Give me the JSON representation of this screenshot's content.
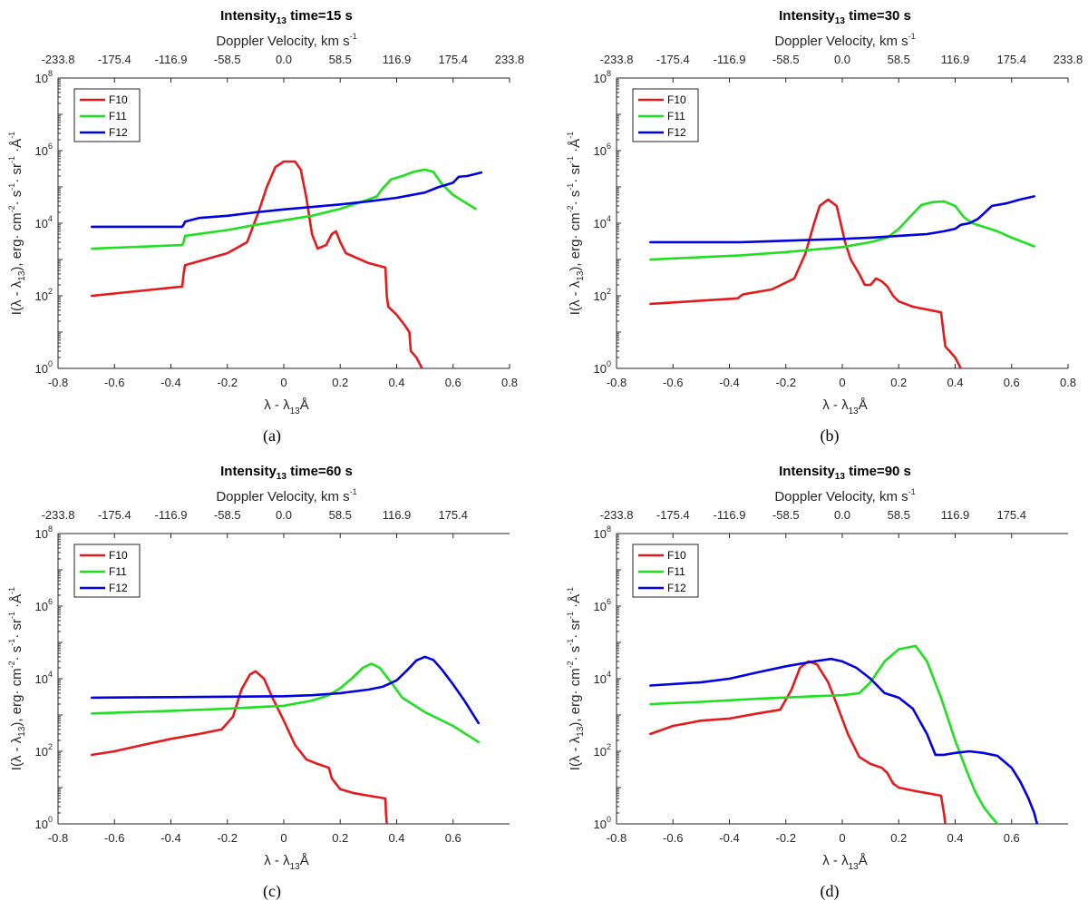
{
  "chart_data": [
    {
      "type": "line",
      "title": "Intensity",
      "title_sub": "13",
      "title_suffix": " time=15 s",
      "caption": "(a)",
      "xlabel_prefix": "λ - λ",
      "xlabel_sub": "13",
      "xlabel_suffix": "Å",
      "ylabel": "I(λ - λ13), erg· cm-2· s-1· sr-1 ·Å-1",
      "top_axis_label": "Doppler Velocity, km s",
      "top_axis_sup": "-1",
      "xlim": [
        -0.8,
        0.8
      ],
      "ylim": [
        1,
        100000000
      ],
      "yscale": "log",
      "xticks": [
        "-0.8",
        "-0.6",
        "-0.4",
        "-0.2",
        "0",
        "0.2",
        "0.4",
        "0.6",
        "0.8"
      ],
      "xtick_values": [
        -0.8,
        -0.6,
        -0.4,
        -0.2,
        0,
        0.2,
        0.4,
        0.6,
        0.8
      ],
      "top_ticks": [
        "-233.8",
        "-175.4",
        "-116.9",
        "-58.5",
        "0.0",
        "58.5",
        "116.9",
        "175.4",
        "233.8"
      ],
      "top_tick_values": [
        -0.8,
        -0.6,
        -0.4,
        -0.2,
        0,
        0.2,
        0.4,
        0.6,
        0.8
      ],
      "yticks_exp": [
        "0",
        "2",
        "4",
        "6",
        "8"
      ],
      "legend": {
        "position": "top-left"
      },
      "series": [
        {
          "name": "F10",
          "color": "#e41a1c",
          "x": [
            -0.68,
            -0.36,
            -0.355,
            -0.35,
            -0.2,
            -0.13,
            -0.09,
            -0.06,
            -0.03,
            0.0,
            0.04,
            0.06,
            0.08,
            0.1,
            0.12,
            0.15,
            0.17,
            0.185,
            0.2,
            0.22,
            0.3,
            0.36,
            0.365,
            0.37,
            0.4,
            0.43,
            0.445,
            0.45,
            0.47,
            0.49
          ],
          "y": [
            100,
            180,
            400,
            700,
            1500,
            3000,
            20000,
            100000,
            350000,
            500000,
            500000,
            300000,
            50000,
            5000,
            2000,
            2500,
            5000,
            6000,
            3000,
            1500,
            800,
            600,
            100,
            50,
            30,
            15,
            10,
            3,
            2,
            1
          ]
        },
        {
          "name": "F11",
          "color": "#1fe01f",
          "x": [
            -0.68,
            -0.36,
            -0.355,
            -0.35,
            -0.2,
            -0.1,
            0.0,
            0.1,
            0.2,
            0.3,
            0.33,
            0.35,
            0.38,
            0.42,
            0.46,
            0.5,
            0.53,
            0.56,
            0.6,
            0.68
          ],
          "y": [
            2000,
            2500,
            3000,
            4500,
            6500,
            9000,
            12000,
            16000,
            25000,
            45000,
            55000,
            90000,
            160000,
            200000,
            260000,
            300000,
            260000,
            120000,
            60000,
            25000
          ]
        },
        {
          "name": "F12",
          "color": "#0000e0",
          "x": [
            -0.68,
            -0.36,
            -0.355,
            -0.35,
            -0.3,
            -0.2,
            -0.1,
            0.0,
            0.1,
            0.2,
            0.3,
            0.4,
            0.5,
            0.55,
            0.57,
            0.6,
            0.62,
            0.65,
            0.7
          ],
          "y": [
            8000,
            8000,
            9000,
            11000,
            14000,
            16000,
            20000,
            24000,
            28000,
            33000,
            40000,
            50000,
            70000,
            100000,
            110000,
            130000,
            190000,
            200000,
            250000
          ]
        }
      ]
    },
    {
      "type": "line",
      "title": "Intensity",
      "title_sub": "13",
      "title_suffix": " time=30 s",
      "caption": "(b)",
      "xlabel_prefix": "λ - λ",
      "xlabel_sub": "13",
      "xlabel_suffix": "Å",
      "ylabel": "I(λ - λ13), erg· cm-2· s-1· sr-1 ·Å-1",
      "top_axis_label": "Doppler Velocity, km s",
      "top_axis_sup": "-1",
      "xlim": [
        -0.8,
        0.8
      ],
      "ylim": [
        1,
        100000000
      ],
      "yscale": "log",
      "xticks": [
        "-0.8",
        "-0.6",
        "-0.4",
        "-0.2",
        "0",
        "0.2",
        "0.4",
        "0.6",
        "0.8"
      ],
      "xtick_values": [
        -0.8,
        -0.6,
        -0.4,
        -0.2,
        0,
        0.2,
        0.4,
        0.6,
        0.8
      ],
      "top_ticks": [
        "-233.8",
        "-175.4",
        "-116.9",
        "-58.5",
        "0.0",
        "58.5",
        "116.9",
        "175.4",
        "233.8"
      ],
      "top_tick_values": [
        -0.8,
        -0.6,
        -0.4,
        -0.2,
        0,
        0.2,
        0.4,
        0.6,
        0.8
      ],
      "yticks_exp": [
        "0",
        "2",
        "4",
        "6",
        "8"
      ],
      "legend": {
        "position": "top-left"
      },
      "series": [
        {
          "name": "F10",
          "color": "#e41a1c",
          "x": [
            -0.68,
            -0.37,
            -0.36,
            -0.35,
            -0.25,
            -0.17,
            -0.13,
            -0.1,
            -0.08,
            -0.05,
            -0.02,
            0.01,
            0.03,
            0.06,
            0.08,
            0.1,
            0.12,
            0.14,
            0.16,
            0.18,
            0.2,
            0.25,
            0.35,
            0.36,
            0.365,
            0.38,
            0.4,
            0.42
          ],
          "y": [
            60,
            85,
            100,
            110,
            150,
            300,
            1500,
            10000,
            30000,
            45000,
            30000,
            3000,
            1000,
            400,
            200,
            200,
            300,
            250,
            180,
            100,
            70,
            50,
            35,
            8,
            4,
            3,
            2,
            1
          ]
        },
        {
          "name": "F11",
          "color": "#1fe01f",
          "x": [
            -0.68,
            -0.36,
            -0.2,
            0.0,
            0.1,
            0.16,
            0.2,
            0.24,
            0.28,
            0.32,
            0.36,
            0.4,
            0.43,
            0.46,
            0.5,
            0.55,
            0.6,
            0.68
          ],
          "y": [
            1000,
            1300,
            1600,
            2200,
            3000,
            4000,
            7000,
            15000,
            32000,
            38000,
            40000,
            30000,
            15000,
            10000,
            8000,
            6000,
            4000,
            2300
          ]
        },
        {
          "name": "F12",
          "color": "#0000e0",
          "x": [
            -0.68,
            -0.36,
            -0.2,
            0.0,
            0.1,
            0.2,
            0.3,
            0.36,
            0.4,
            0.42,
            0.45,
            0.48,
            0.5,
            0.53,
            0.58,
            0.63,
            0.68
          ],
          "y": [
            3000,
            3000,
            3300,
            3700,
            4000,
            4500,
            5000,
            6000,
            7000,
            9000,
            10000,
            13000,
            18000,
            30000,
            35000,
            45000,
            55000
          ]
        }
      ]
    },
    {
      "type": "line",
      "title": "Intensity",
      "title_sub": "13",
      "title_suffix": " time=60 s",
      "caption": "(c)",
      "xlabel_prefix": "λ - λ",
      "xlabel_sub": "13",
      "xlabel_suffix": "Å",
      "ylabel": "I(λ - λ13), erg· cm-2· s-1· sr-1 ·Å-1",
      "top_axis_label": "Doppler Velocity, km s",
      "top_axis_sup": "-1",
      "xlim": [
        -0.8,
        0.8
      ],
      "ylim": [
        1,
        100000000
      ],
      "yscale": "log",
      "xticks": [
        "-0.8",
        "-0.6",
        "-0.4",
        "-0.2",
        "0",
        "0.2",
        "0.4",
        "0.6"
      ],
      "xtick_values": [
        -0.8,
        -0.6,
        -0.4,
        -0.2,
        0,
        0.2,
        0.4,
        0.6
      ],
      "top_ticks": [
        "-233.8",
        "-175.4",
        "-116.9",
        "-58.5",
        "0.0",
        "58.5",
        "116.9",
        "175.4"
      ],
      "top_tick_values": [
        -0.8,
        -0.6,
        -0.4,
        -0.2,
        0,
        0.2,
        0.4,
        0.6
      ],
      "yticks_exp": [
        "0",
        "2",
        "4",
        "6",
        "8"
      ],
      "legend": {
        "position": "top-left"
      },
      "series": [
        {
          "name": "F10",
          "color": "#e41a1c",
          "x": [
            -0.68,
            -0.6,
            -0.5,
            -0.4,
            -0.3,
            -0.22,
            -0.18,
            -0.15,
            -0.12,
            -0.1,
            -0.07,
            -0.04,
            0.0,
            0.04,
            0.08,
            0.12,
            0.16,
            0.17,
            0.2,
            0.25,
            0.3,
            0.36,
            0.362,
            0.365
          ],
          "y": [
            80,
            100,
            150,
            220,
            300,
            400,
            900,
            5000,
            13000,
            16000,
            10000,
            3000,
            700,
            150,
            60,
            45,
            35,
            18,
            9,
            7,
            6,
            5,
            2,
            1
          ]
        },
        {
          "name": "F11",
          "color": "#1fe01f",
          "x": [
            -0.68,
            -0.4,
            -0.2,
            0.0,
            0.1,
            0.16,
            0.2,
            0.24,
            0.28,
            0.31,
            0.34,
            0.38,
            0.42,
            0.5,
            0.6,
            0.69
          ],
          "y": [
            1100,
            1300,
            1500,
            1800,
            2500,
            3500,
            5500,
            10000,
            20000,
            26000,
            20000,
            8000,
            3000,
            1200,
            500,
            180
          ]
        },
        {
          "name": "F12",
          "color": "#0000e0",
          "x": [
            -0.68,
            -0.4,
            -0.2,
            0.0,
            0.1,
            0.2,
            0.3,
            0.35,
            0.4,
            0.44,
            0.47,
            0.5,
            0.53,
            0.56,
            0.6,
            0.64,
            0.69
          ],
          "y": [
            3000,
            3100,
            3200,
            3300,
            3500,
            4000,
            5000,
            6000,
            9000,
            18000,
            32000,
            40000,
            33000,
            18000,
            7000,
            2500,
            600
          ]
        }
      ]
    },
    {
      "type": "line",
      "title": "Intensity",
      "title_sub": "13",
      "title_suffix": " time=90 s",
      "caption": "(d)",
      "xlabel_prefix": "λ - λ",
      "xlabel_sub": "13",
      "xlabel_suffix": "Å",
      "ylabel": "I(λ - λ13), erg· cm-2· s-1· sr-1 ·Å-1",
      "top_axis_label": "Doppler Velocity, km s",
      "top_axis_sup": "-1",
      "xlim": [
        -0.8,
        0.8
      ],
      "ylim": [
        1,
        100000000
      ],
      "yscale": "log",
      "xticks": [
        "-0.8",
        "-0.6",
        "-0.4",
        "-0.2",
        "0",
        "0.2",
        "0.4",
        "0.6"
      ],
      "xtick_values": [
        -0.8,
        -0.6,
        -0.4,
        -0.2,
        0,
        0.2,
        0.4,
        0.6
      ],
      "top_ticks": [
        "-233.8",
        "-175.4",
        "-116.9",
        "-58.5",
        "0.0",
        "58.5",
        "116.9",
        "175.4"
      ],
      "top_tick_values": [
        -0.8,
        -0.6,
        -0.4,
        -0.2,
        0,
        0.2,
        0.4,
        0.6
      ],
      "yticks_exp": [
        "0",
        "2",
        "4",
        "6",
        "8"
      ],
      "legend": {
        "position": "top-left"
      },
      "series": [
        {
          "name": "F10",
          "color": "#e41a1c",
          "x": [
            -0.68,
            -0.6,
            -0.5,
            -0.4,
            -0.3,
            -0.22,
            -0.18,
            -0.15,
            -0.12,
            -0.09,
            -0.05,
            -0.02,
            0.02,
            0.06,
            0.1,
            0.14,
            0.16,
            0.18,
            0.2,
            0.26,
            0.35,
            0.36,
            0.365
          ],
          "y": [
            300,
            500,
            700,
            800,
            1100,
            1400,
            5000,
            20000,
            30000,
            25000,
            8000,
            2000,
            300,
            70,
            45,
            35,
            25,
            13,
            10,
            8,
            6,
            2,
            1
          ]
        },
        {
          "name": "F11",
          "color": "#1fe01f",
          "x": [
            -0.68,
            -0.5,
            -0.3,
            -0.1,
            0.0,
            0.06,
            0.1,
            0.15,
            0.2,
            0.26,
            0.3,
            0.35,
            0.4,
            0.44,
            0.47,
            0.5,
            0.53,
            0.55
          ],
          "y": [
            2000,
            2300,
            2800,
            3300,
            3500,
            4000,
            8000,
            30000,
            65000,
            80000,
            30000,
            3000,
            200,
            30,
            8,
            3,
            1.5,
            1
          ]
        },
        {
          "name": "F12",
          "color": "#0000e0",
          "x": [
            -0.68,
            -0.5,
            -0.4,
            -0.3,
            -0.2,
            -0.1,
            -0.04,
            0.0,
            0.05,
            0.1,
            0.15,
            0.2,
            0.25,
            0.3,
            0.33,
            0.36,
            0.4,
            0.45,
            0.5,
            0.55,
            0.6,
            0.63,
            0.66,
            0.68,
            0.69
          ],
          "y": [
            6500,
            8000,
            10000,
            15000,
            22000,
            30000,
            35000,
            30000,
            20000,
            10000,
            4000,
            3000,
            1500,
            300,
            80,
            80,
            90,
            100,
            90,
            75,
            35,
            15,
            5,
            2,
            1
          ]
        }
      ]
    }
  ]
}
